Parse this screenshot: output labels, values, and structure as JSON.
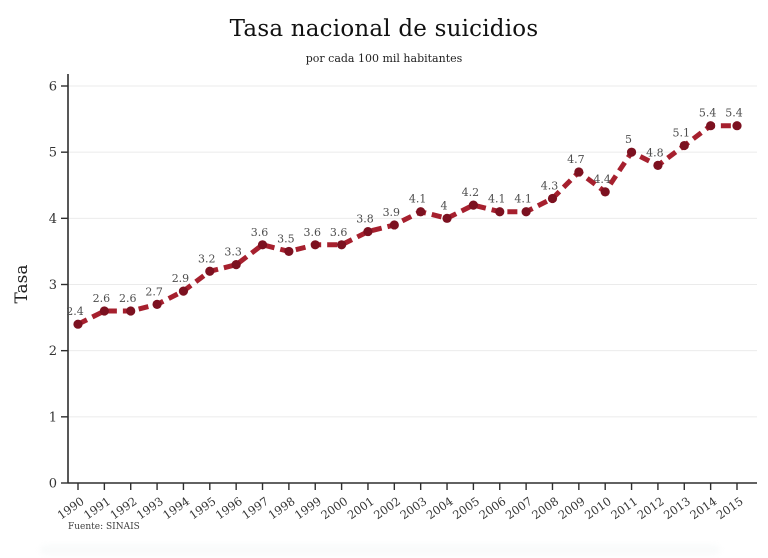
{
  "page": {
    "title": "Tasa nacional de suicidios",
    "subtitle": "por cada 100 mil habitantes",
    "y_axis_title": "Tasa",
    "source_note": "Fuente: SINAIS"
  },
  "colors": {
    "line": "#a6202e",
    "marker": "#7c1120",
    "grid": "#ebebeb",
    "axis": "#2e2e2e",
    "tick_label": "#333333",
    "point_label": "#4d4d4d"
  },
  "chart_data": {
    "type": "line",
    "title": "Tasa nacional de suicidios",
    "subtitle": "por cada 100 mil habitantes",
    "xlabel": "",
    "ylabel": "Tasa",
    "x": [
      1990,
      1991,
      1992,
      1993,
      1994,
      1995,
      1996,
      1997,
      1998,
      1999,
      2000,
      2001,
      2002,
      2003,
      2004,
      2005,
      2006,
      2007,
      2008,
      2009,
      2010,
      2011,
      2012,
      2013,
      2014,
      2015
    ],
    "values": [
      2.4,
      2.6,
      2.6,
      2.7,
      2.9,
      3.2,
      3.3,
      3.6,
      3.5,
      3.6,
      3.6,
      3.8,
      3.9,
      4.1,
      4,
      4.2,
      4.1,
      4.1,
      4.3,
      4.7,
      4.4,
      5,
      4.8,
      5.1,
      5.4,
      5.4
    ],
    "point_labels": [
      "2.4",
      "2.6",
      "2.6",
      "2.7",
      "2.9",
      "3.2",
      "3.3",
      "3.6",
      "3.5",
      "3.6",
      "3.6",
      "3.8",
      "3.9",
      "4.1",
      "4",
      "4.2",
      "4.1",
      "4.1",
      "4.3",
      "4.7",
      "4.4",
      "5",
      "4.8",
      "5.1",
      "5.4",
      "5.4"
    ],
    "ylim": [
      0,
      6
    ],
    "yticks": [
      0,
      1,
      2,
      3,
      4,
      5,
      6
    ],
    "grid": "horizontal",
    "line_style": "dashed",
    "marker": "circle",
    "legend": "none",
    "source": "Fuente: SINAIS"
  }
}
